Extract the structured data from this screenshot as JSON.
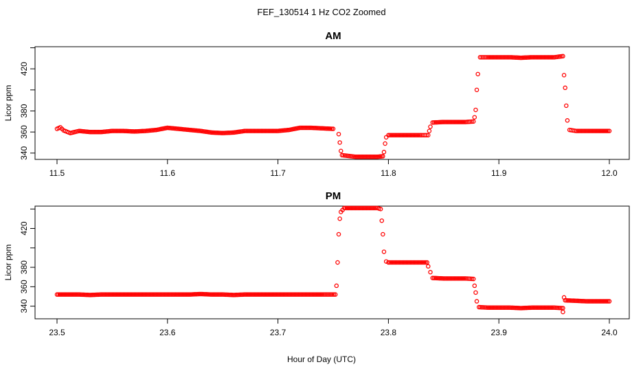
{
  "title": "FEF_130514  1 Hz CO2 Zoomed",
  "xlabel": "Hour of Day (UTC)",
  "colors": {
    "points": "#ff0000",
    "axes": "#000000",
    "background": "#ffffff"
  },
  "chart_data": [
    {
      "type": "scatter",
      "title": "AM",
      "ylabel": "Licor ppm",
      "xlim": [
        11.5,
        12.0
      ],
      "ylim": [
        334,
        441
      ],
      "x_ticks": [
        "11.5",
        "11.6",
        "11.7",
        "11.8",
        "11.9",
        "12.0"
      ],
      "y_ticks": [
        "340",
        "360",
        "380",
        "420"
      ],
      "points": [
        [
          11.5,
          363
        ],
        [
          11.503,
          364.5
        ],
        [
          11.506,
          361.5
        ],
        [
          11.512,
          359
        ],
        [
          11.52,
          361
        ],
        [
          11.53,
          360
        ],
        [
          11.54,
          360
        ],
        [
          11.55,
          361
        ],
        [
          11.56,
          361
        ],
        [
          11.57,
          360.5
        ],
        [
          11.58,
          361
        ],
        [
          11.59,
          362
        ],
        [
          11.6,
          364
        ],
        [
          11.61,
          363
        ],
        [
          11.62,
          362
        ],
        [
          11.63,
          361
        ],
        [
          11.64,
          359.5
        ],
        [
          11.65,
          359
        ],
        [
          11.66,
          359.5
        ],
        [
          11.67,
          361
        ],
        [
          11.68,
          361
        ],
        [
          11.69,
          361
        ],
        [
          11.7,
          361
        ],
        [
          11.71,
          362
        ],
        [
          11.72,
          364
        ],
        [
          11.73,
          364
        ],
        [
          11.74,
          363.5
        ],
        [
          11.75,
          363
        ],
        [
          11.755,
          358
        ],
        [
          11.756,
          350
        ],
        [
          11.757,
          342
        ],
        [
          11.758,
          338
        ],
        [
          11.77,
          336.5
        ],
        [
          11.78,
          336.5
        ],
        [
          11.79,
          336.5
        ],
        [
          11.795,
          337
        ],
        [
          11.796,
          341
        ],
        [
          11.797,
          349
        ],
        [
          11.798,
          355
        ],
        [
          11.8,
          357
        ],
        [
          11.81,
          357
        ],
        [
          11.82,
          357
        ],
        [
          11.83,
          357
        ],
        [
          11.836,
          357
        ],
        [
          11.837,
          361
        ],
        [
          11.838,
          365
        ],
        [
          11.84,
          369
        ],
        [
          11.85,
          369.5
        ],
        [
          11.86,
          369.5
        ],
        [
          11.87,
          369.5
        ],
        [
          11.877,
          370
        ],
        [
          11.878,
          374
        ],
        [
          11.879,
          381
        ],
        [
          11.88,
          400
        ],
        [
          11.881,
          415
        ],
        [
          11.883,
          431
        ],
        [
          11.89,
          431
        ],
        [
          11.9,
          431
        ],
        [
          11.91,
          431
        ],
        [
          11.92,
          430.5
        ],
        [
          11.93,
          431
        ],
        [
          11.94,
          431
        ],
        [
          11.95,
          431
        ],
        [
          11.958,
          432
        ],
        [
          11.959,
          414
        ],
        [
          11.96,
          402
        ],
        [
          11.961,
          385
        ],
        [
          11.962,
          371
        ],
        [
          11.964,
          362
        ],
        [
          11.97,
          361
        ],
        [
          11.98,
          361
        ],
        [
          11.99,
          361
        ],
        [
          12.0,
          361
        ]
      ]
    },
    {
      "type": "scatter",
      "title": "PM",
      "ylabel": "Licor ppm",
      "xlim": [
        23.5,
        24.0
      ],
      "ylim": [
        327,
        443
      ],
      "x_ticks": [
        "23.5",
        "23.6",
        "23.7",
        "23.8",
        "23.9",
        "24.0"
      ],
      "y_ticks": [
        "340",
        "360",
        "380",
        "420"
      ],
      "points": [
        [
          23.5,
          352
        ],
        [
          23.51,
          352
        ],
        [
          23.52,
          352
        ],
        [
          23.53,
          351.5
        ],
        [
          23.54,
          352
        ],
        [
          23.55,
          352
        ],
        [
          23.56,
          352
        ],
        [
          23.57,
          352
        ],
        [
          23.58,
          352
        ],
        [
          23.59,
          352
        ],
        [
          23.6,
          352
        ],
        [
          23.61,
          352
        ],
        [
          23.62,
          352
        ],
        [
          23.63,
          352.5
        ],
        [
          23.64,
          352
        ],
        [
          23.65,
          352
        ],
        [
          23.66,
          351.5
        ],
        [
          23.67,
          352
        ],
        [
          23.68,
          352
        ],
        [
          23.69,
          352
        ],
        [
          23.7,
          352
        ],
        [
          23.71,
          352
        ],
        [
          23.72,
          352
        ],
        [
          23.73,
          352
        ],
        [
          23.74,
          352
        ],
        [
          23.752,
          352
        ],
        [
          23.753,
          361
        ],
        [
          23.754,
          385
        ],
        [
          23.755,
          414
        ],
        [
          23.756,
          430
        ],
        [
          23.757,
          437
        ],
        [
          23.76,
          441
        ],
        [
          23.77,
          441
        ],
        [
          23.78,
          441
        ],
        [
          23.79,
          441
        ],
        [
          23.793,
          440
        ],
        [
          23.794,
          428
        ],
        [
          23.795,
          414
        ],
        [
          23.796,
          396
        ],
        [
          23.798,
          386
        ],
        [
          23.8,
          385
        ],
        [
          23.81,
          385
        ],
        [
          23.82,
          385
        ],
        [
          23.83,
          385
        ],
        [
          23.835,
          385
        ],
        [
          23.836,
          381
        ],
        [
          23.838,
          375
        ],
        [
          23.84,
          369
        ],
        [
          23.85,
          368.5
        ],
        [
          23.86,
          368.5
        ],
        [
          23.87,
          368.5
        ],
        [
          23.877,
          368
        ],
        [
          23.878,
          361
        ],
        [
          23.879,
          354
        ],
        [
          23.88,
          345
        ],
        [
          23.882,
          339
        ],
        [
          23.89,
          338.5
        ],
        [
          23.9,
          338.5
        ],
        [
          23.91,
          338.5
        ],
        [
          23.92,
          338
        ],
        [
          23.93,
          338.5
        ],
        [
          23.94,
          338.5
        ],
        [
          23.95,
          338.5
        ],
        [
          23.958,
          338
        ],
        [
          23.958,
          334
        ],
        [
          23.959,
          349
        ],
        [
          23.96,
          346
        ],
        [
          23.97,
          345.5
        ],
        [
          23.98,
          345
        ],
        [
          23.99,
          345
        ],
        [
          24.0,
          345
        ]
      ]
    }
  ]
}
